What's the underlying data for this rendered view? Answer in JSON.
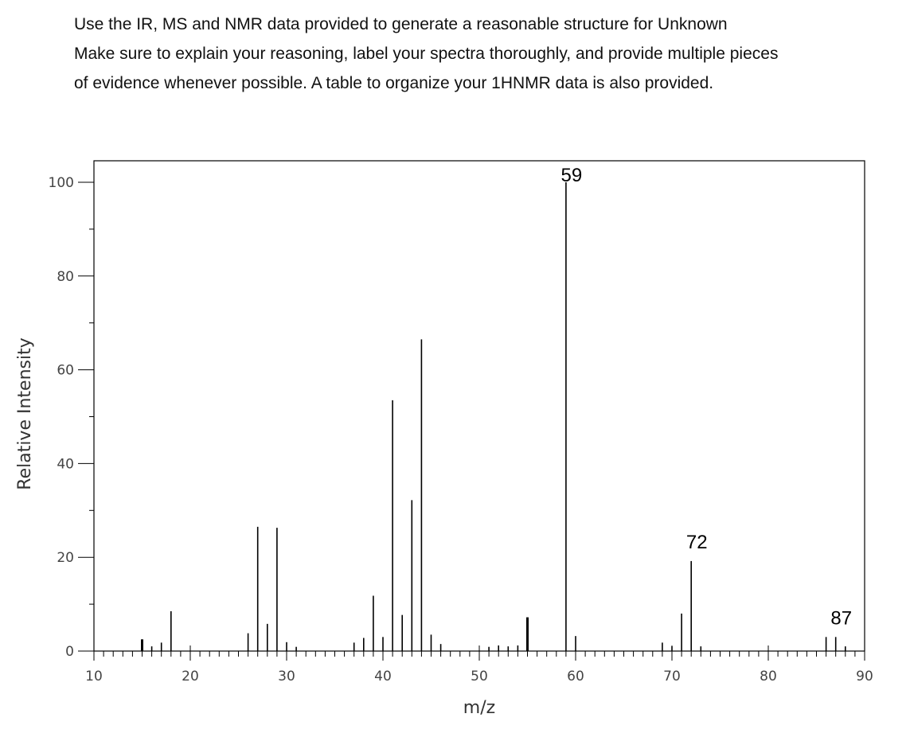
{
  "instructions": {
    "line1": "Use the IR, MS and NMR data provided to generate a reasonable structure for Unknown",
    "line2": "Make sure to explain your reasoning, label your spectra thoroughly, and provide multiple pieces",
    "line3": "of evidence whenever possible. A table to organize your 1HNMR data is also provided."
  },
  "chart_data": {
    "type": "bar",
    "title": "",
    "xlabel": "m/z",
    "ylabel": "Relative Intensity",
    "xlim": [
      10,
      90
    ],
    "ylim": [
      0,
      100
    ],
    "x_ticks": [
      10,
      20,
      30,
      40,
      50,
      60,
      70,
      80,
      90
    ],
    "y_ticks": [
      0,
      20,
      40,
      60,
      80,
      100
    ],
    "grid": false,
    "bar_color": "#000000",
    "peaks": [
      {
        "mz": 15,
        "intensity": 2.5
      },
      {
        "mz": 16,
        "intensity": 1.0
      },
      {
        "mz": 17,
        "intensity": 1.8
      },
      {
        "mz": 18,
        "intensity": 8.5
      },
      {
        "mz": 26,
        "intensity": 3.8
      },
      {
        "mz": 27,
        "intensity": 26.5
      },
      {
        "mz": 28,
        "intensity": 5.8
      },
      {
        "mz": 29,
        "intensity": 26.3
      },
      {
        "mz": 30,
        "intensity": 1.9
      },
      {
        "mz": 31,
        "intensity": 0.9
      },
      {
        "mz": 37,
        "intensity": 1.8
      },
      {
        "mz": 38,
        "intensity": 2.8
      },
      {
        "mz": 39,
        "intensity": 11.8
      },
      {
        "mz": 40,
        "intensity": 3.0
      },
      {
        "mz": 41,
        "intensity": 53.5
      },
      {
        "mz": 42,
        "intensity": 7.7
      },
      {
        "mz": 43,
        "intensity": 32.2
      },
      {
        "mz": 44,
        "intensity": 66.5
      },
      {
        "mz": 45,
        "intensity": 3.5
      },
      {
        "mz": 46,
        "intensity": 1.5
      },
      {
        "mz": 51,
        "intensity": 0.9
      },
      {
        "mz": 52,
        "intensity": 1.2
      },
      {
        "mz": 53,
        "intensity": 1.0
      },
      {
        "mz": 54,
        "intensity": 1.2
      },
      {
        "mz": 55,
        "intensity": 7.2
      },
      {
        "mz": 59,
        "intensity": 100
      },
      {
        "mz": 60,
        "intensity": 3.2
      },
      {
        "mz": 69,
        "intensity": 1.8
      },
      {
        "mz": 70,
        "intensity": 1.0
      },
      {
        "mz": 71,
        "intensity": 8.0
      },
      {
        "mz": 72,
        "intensity": 19.2
      },
      {
        "mz": 73,
        "intensity": 1.0
      },
      {
        "mz": 86,
        "intensity": 3.0
      },
      {
        "mz": 87,
        "intensity": 3.0
      },
      {
        "mz": 88,
        "intensity": 1.0
      }
    ],
    "annotations": [
      {
        "mz": 59,
        "text": "59"
      },
      {
        "mz": 72,
        "text": "72"
      },
      {
        "mz": 87,
        "text": "87"
      }
    ]
  }
}
